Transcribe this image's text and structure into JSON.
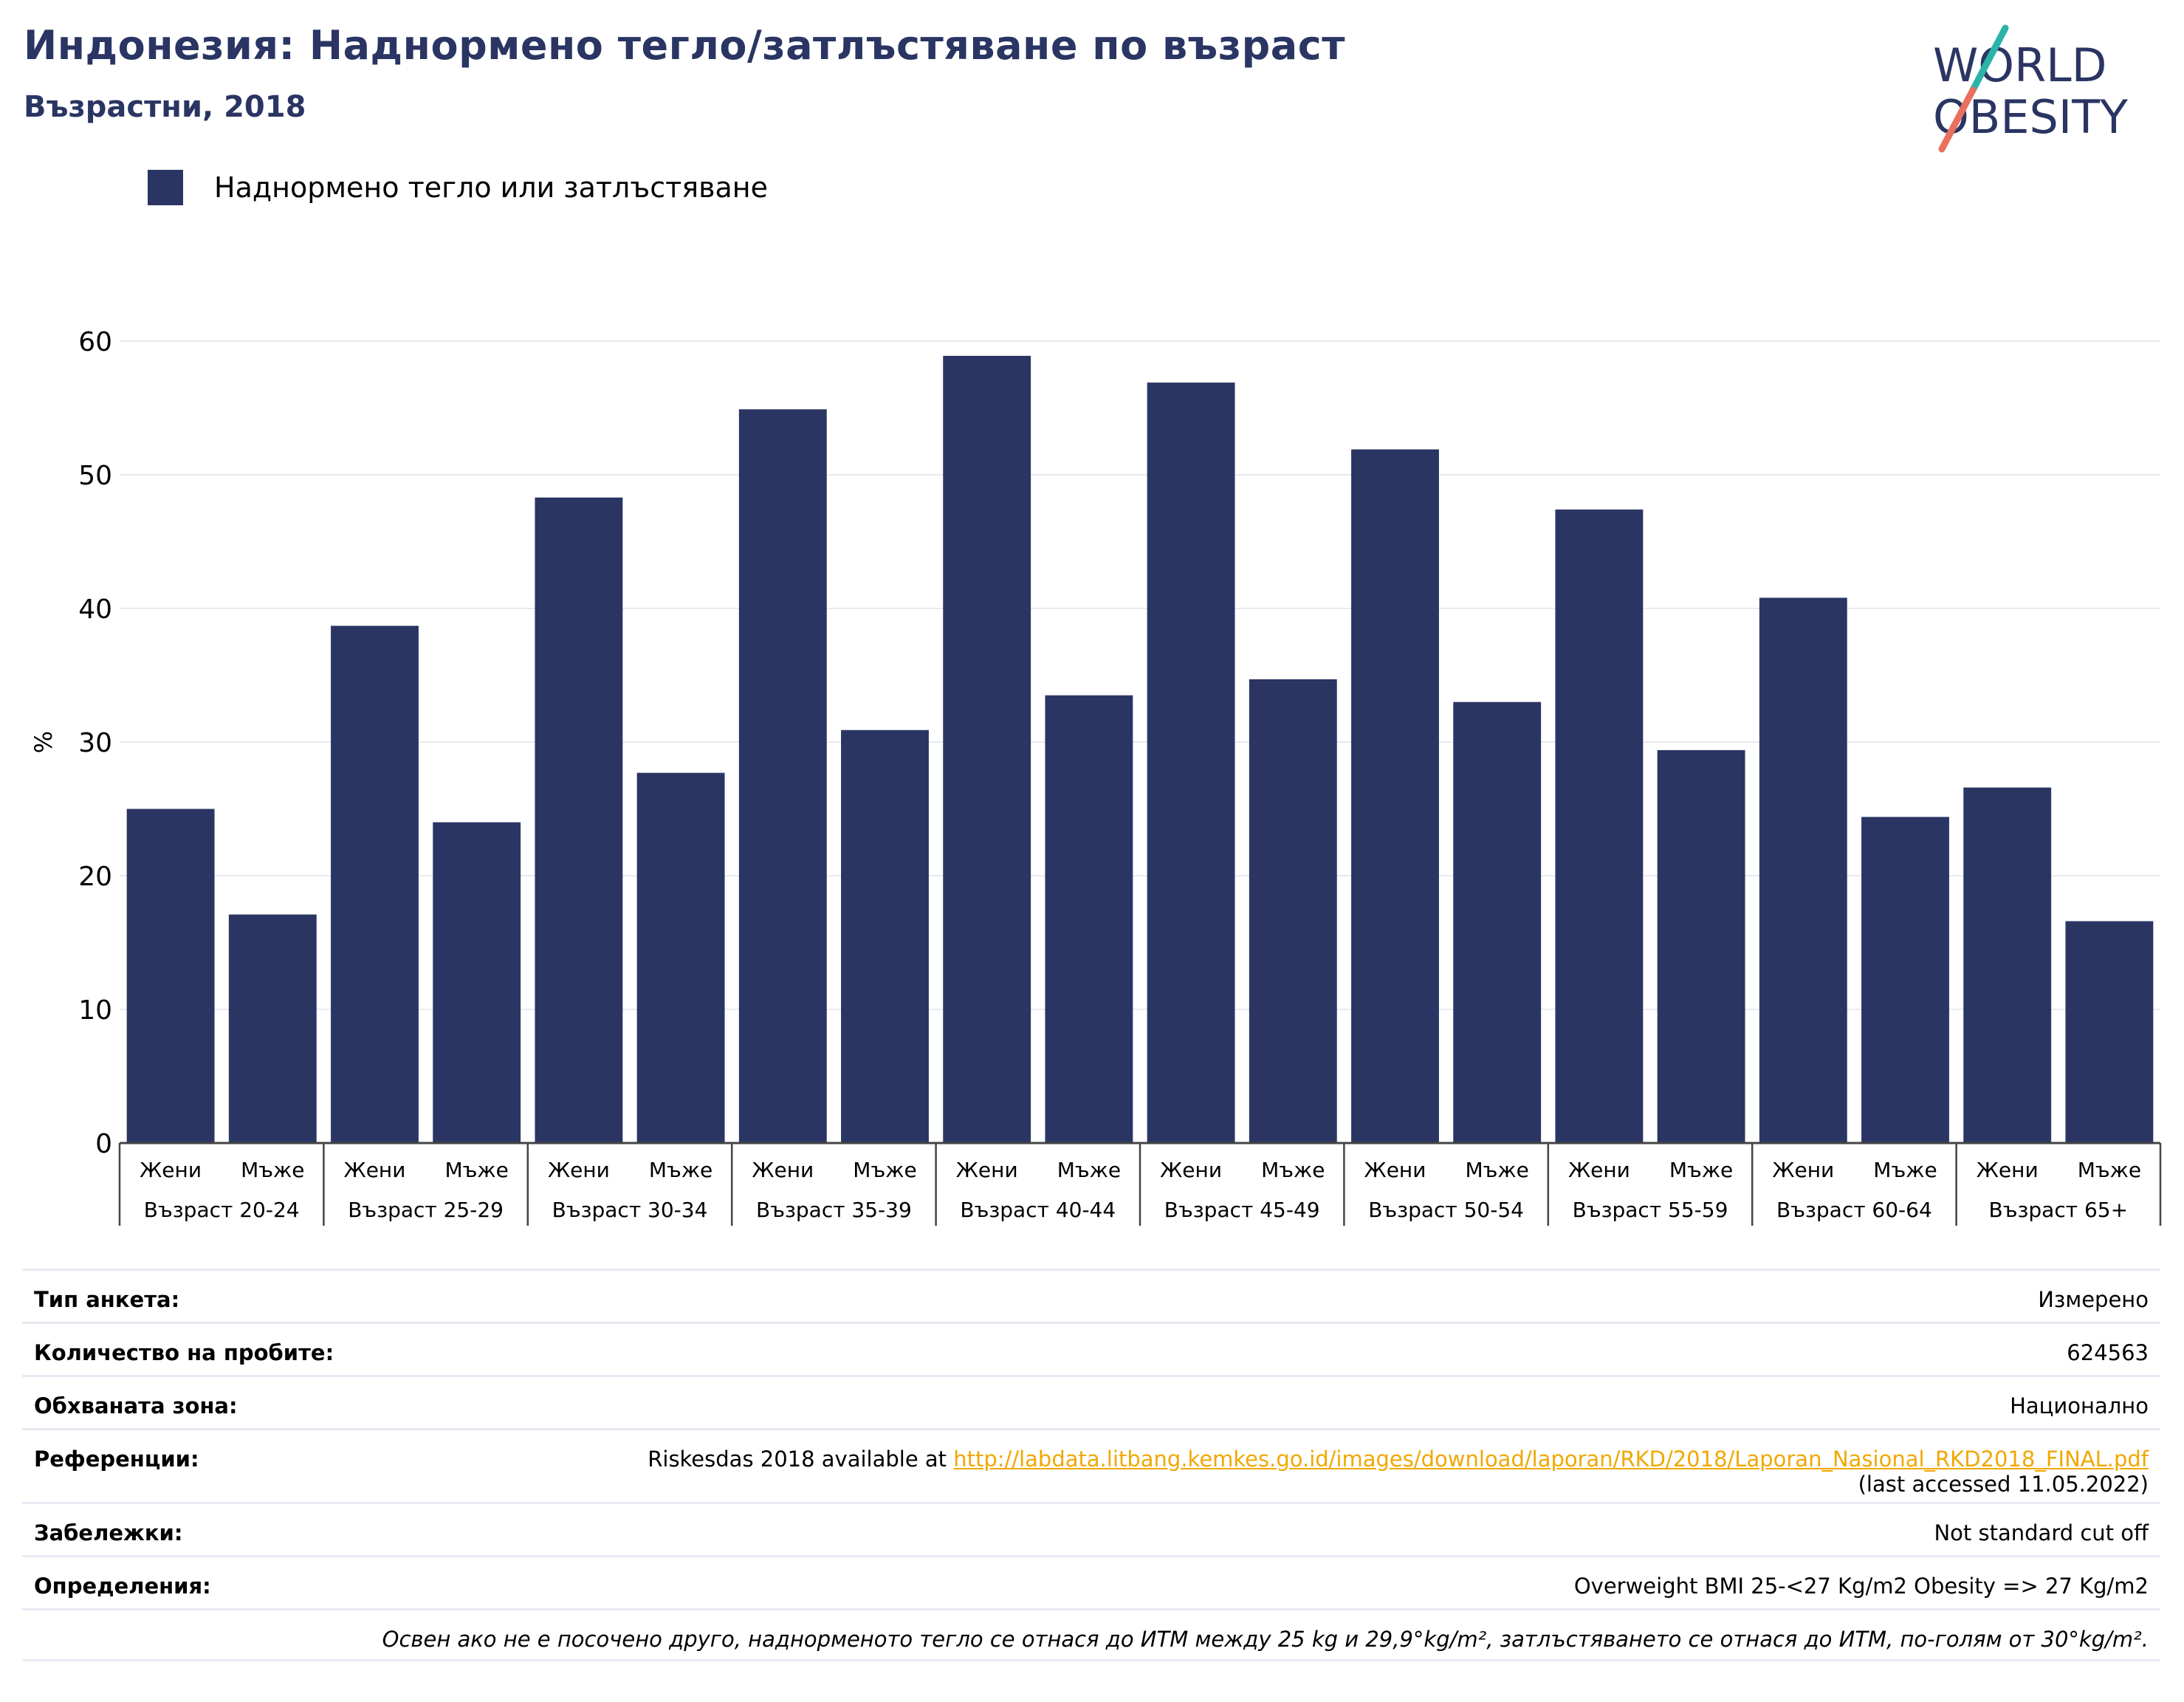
{
  "title": "Индонезия: Наднормено тегло/затлъстяване по възраст",
  "subtitle": "Възрастни, 2018",
  "logo": {
    "line1": "WORLD",
    "line2": "OBESITY"
  },
  "colors": {
    "bar": "#2a3563",
    "title": "#2a3563",
    "grid": "#e8eaf0",
    "link": "#f0a800",
    "logo_teal": "#2bb3a8",
    "logo_coral": "#e8705c"
  },
  "chart_data": {
    "type": "bar",
    "ylabel": "%",
    "ylim": [
      0,
      60
    ],
    "yticks": [
      0,
      10,
      20,
      30,
      40,
      50,
      60
    ],
    "grid": true,
    "legend_position": "top-left",
    "series": [
      {
        "name": "Наднормено тегло или затлъстяване"
      }
    ],
    "groups": [
      {
        "label": "Възраст 20-24",
        "bars": [
          {
            "category": "Жени",
            "value": 25.0
          },
          {
            "category": "Мъже",
            "value": 17.1
          }
        ]
      },
      {
        "label": "Възраст 25-29",
        "bars": [
          {
            "category": "Жени",
            "value": 38.7
          },
          {
            "category": "Мъже",
            "value": 24.0
          }
        ]
      },
      {
        "label": "Възраст 30-34",
        "bars": [
          {
            "category": "Жени",
            "value": 48.3
          },
          {
            "category": "Мъже",
            "value": 27.7
          }
        ]
      },
      {
        "label": "Възраст 35-39",
        "bars": [
          {
            "category": "Жени",
            "value": 54.9
          },
          {
            "category": "Мъже",
            "value": 30.9
          }
        ]
      },
      {
        "label": "Възраст 40-44",
        "bars": [
          {
            "category": "Жени",
            "value": 58.9
          },
          {
            "category": "Мъже",
            "value": 33.5
          }
        ]
      },
      {
        "label": "Възраст 45-49",
        "bars": [
          {
            "category": "Жени",
            "value": 56.9
          },
          {
            "category": "Мъже",
            "value": 34.7
          }
        ]
      },
      {
        "label": "Възраст 50-54",
        "bars": [
          {
            "category": "Жени",
            "value": 51.9
          },
          {
            "category": "Мъже",
            "value": 33.0
          }
        ]
      },
      {
        "label": "Възраст 55-59",
        "bars": [
          {
            "category": "Жени",
            "value": 47.4
          },
          {
            "category": "Мъже",
            "value": 29.4
          }
        ]
      },
      {
        "label": "Възраст 60-64",
        "bars": [
          {
            "category": "Жени",
            "value": 40.8
          },
          {
            "category": "Мъже",
            "value": 24.4
          }
        ]
      },
      {
        "label": "Възраст 65+",
        "bars": [
          {
            "category": "Жени",
            "value": 26.6
          },
          {
            "category": "Мъже",
            "value": 16.6
          }
        ]
      }
    ]
  },
  "info": {
    "survey_type": {
      "label": "Тип анкета:",
      "value": "Измерено"
    },
    "sample_size": {
      "label": "Количество на пробите:",
      "value": "624563"
    },
    "area": {
      "label": "Обхваната зона:",
      "value": "Национално"
    },
    "references": {
      "label": "Референции:",
      "prefix": "Riskesdas 2018 available at ",
      "url": "http://labdata.litbang.kemkes.go.id/images/download/laporan/RKD/2018/Laporan_Nasional_RKD2018_FINAL.pdf",
      "suffix": "(last accessed 11.05.2022)"
    },
    "notes": {
      "label": "Забележки:",
      "value": "Not standard cut off"
    },
    "definitions": {
      "label": "Определения:",
      "value": "Overweight BMI 25-<27 Kg/m2 Obesity => 27 Kg/m2"
    },
    "footnote": "Освен ако не е посочено друго, наднорменото тегло се отнася до ИТМ между 25 kg и 29,9°kg/m², затлъстяването се отнася до ИТМ, по-голям от 30°kg/m²."
  }
}
